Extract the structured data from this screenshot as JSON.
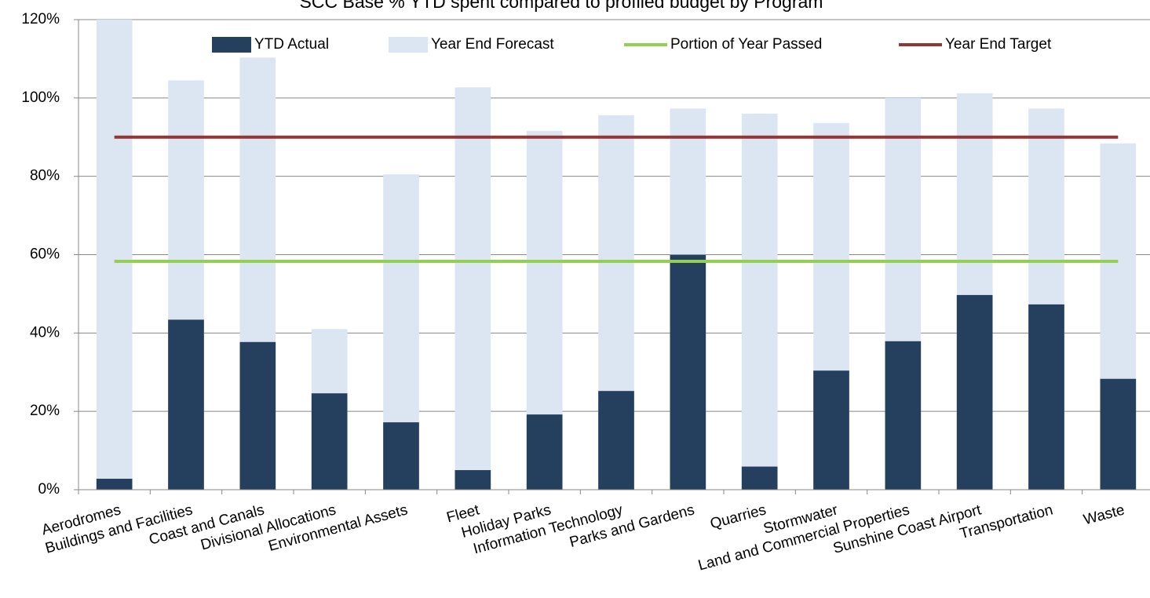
{
  "chart_data": {
    "type": "overlay-bar",
    "title": "SCC Base % YTD spent compared to profiled budget by Program",
    "categories": [
      "Aerodromes",
      "Buildings and Facilities",
      "Coast and Canals",
      "Divisional Allocations",
      "Environmental Assets",
      "Fleet",
      "Holiday Parks",
      "Information Technology",
      "Parks and Gardens",
      "Quarries",
      "Stormwater",
      "Land and Commercial Properties",
      "Sunshine Coast Airport",
      "Transportation",
      "Waste"
    ],
    "series": [
      {
        "name": "Year End Forecast",
        "color": "#dce6f2",
        "values": [
          120,
          104.5,
          110.3,
          41,
          80.5,
          102.7,
          91.6,
          95.6,
          97.3,
          96,
          93.6,
          100,
          101.2,
          97.3,
          88.4
        ]
      },
      {
        "name": "YTD Actual",
        "color": "#253f5f",
        "values": [
          2.8,
          43.4,
          37.7,
          24.6,
          17.2,
          5,
          19.2,
          25.2,
          60,
          5.9,
          30.4,
          37.9,
          49.7,
          47.3,
          28.3
        ]
      }
    ],
    "lines": [
      {
        "name": "Portion of Year Passed",
        "color": "#92d050",
        "value": 58.3
      },
      {
        "name": "Year End Target",
        "color": "#943634",
        "value": 90
      }
    ],
    "ylim": [
      0,
      120
    ],
    "yticks": [
      {
        "value": 0,
        "label": "0%"
      },
      {
        "value": 20,
        "label": "20%"
      },
      {
        "value": 40,
        "label": "40%"
      },
      {
        "value": 60,
        "label": "60%"
      },
      {
        "value": 80,
        "label": "80%"
      },
      {
        "value": 100,
        "label": "100%"
      },
      {
        "value": 120,
        "label": "120%"
      }
    ],
    "grid": true
  }
}
